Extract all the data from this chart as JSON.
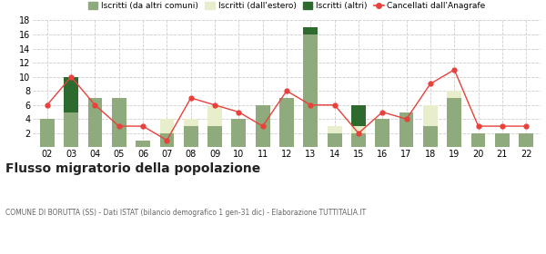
{
  "years": [
    "02",
    "03",
    "04",
    "05",
    "06",
    "07",
    "08",
    "09",
    "10",
    "11",
    "12",
    "13",
    "14",
    "15",
    "16",
    "17",
    "18",
    "19",
    "20",
    "21",
    "22"
  ],
  "iscritti_altri_comuni": [
    4,
    5,
    7,
    7,
    1,
    2,
    3,
    3,
    4,
    6,
    7,
    16,
    2,
    2,
    4,
    5,
    3,
    7,
    2,
    2,
    2
  ],
  "iscritti_estero": [
    0,
    0,
    0,
    0,
    0,
    2,
    1,
    3,
    0,
    0,
    0,
    0,
    1,
    1,
    0,
    0,
    3,
    1,
    0,
    0,
    0
  ],
  "iscritti_altri": [
    0,
    5,
    0,
    0,
    0,
    0,
    0,
    0,
    0,
    0,
    0,
    1,
    0,
    3,
    0,
    0,
    0,
    0,
    0,
    0,
    0
  ],
  "cancellati": [
    6,
    10,
    6,
    3,
    3,
    1,
    7,
    6,
    5,
    3,
    8,
    6,
    6,
    2,
    5,
    4,
    9,
    11,
    3,
    3,
    3
  ],
  "color_altri_comuni": "#8faa7c",
  "color_estero": "#e8eecc",
  "color_altri": "#2d6a2d",
  "color_cancellati": "#e8413c",
  "title": "Flusso migratorio della popolazione",
  "subtitle": "COMUNE DI BORUTTA (SS) - Dati ISTAT (bilancio demografico 1 gen-31 dic) - Elaborazione TUTTITALIA.IT",
  "legend_labels": [
    "Iscritti (da altri comuni)",
    "Iscritti (dall'estero)",
    "Iscritti (altri)",
    "Cancellati dall'Anagrafe"
  ],
  "ylim": [
    0,
    18
  ],
  "yticks": [
    0,
    2,
    4,
    6,
    8,
    10,
    12,
    14,
    16,
    18
  ],
  "bg_color": "#ffffff",
  "grid_color": "#cccccc"
}
